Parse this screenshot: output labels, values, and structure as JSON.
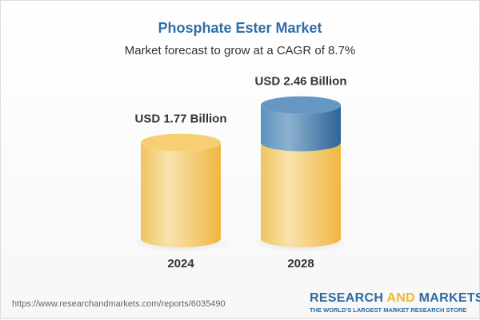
{
  "header": {
    "title": "Phosphate Ester Market",
    "subtitle": "Market forecast to grow at a CAGR of 8.7%"
  },
  "chart_data": {
    "type": "bar",
    "style": "3d-cylinder",
    "categories": [
      "2024",
      "2028"
    ],
    "values": [
      1.77,
      2.46
    ],
    "data_labels": [
      "USD 1.77 Billion",
      "USD 2.46 Billion"
    ],
    "unit": "USD Billion",
    "colors": {
      "base": "#f3c358",
      "growth": "#3f7cb0"
    }
  },
  "footer": {
    "url": "https://www.researchandmarkets.com/reports/6035490",
    "logo_part1": "RESEARCH ",
    "logo_part2": "AND",
    "logo_part3": " MARKETS",
    "tagline": "THE WORLD'S LARGEST MARKET RESEARCH STORE"
  }
}
